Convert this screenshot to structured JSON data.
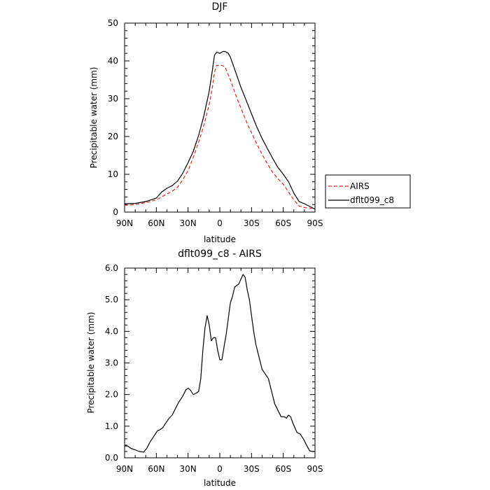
{
  "chart_data": [
    {
      "type": "line",
      "title": "DJF",
      "xlabel": "latitude",
      "ylabel": "Precipitable water (mm)",
      "xlim": [
        90,
        -90
      ],
      "ylim": [
        0,
        50
      ],
      "x_ticks": [
        {
          "value": 90,
          "label": "90N"
        },
        {
          "value": 60,
          "label": "60N"
        },
        {
          "value": 30,
          "label": "30N"
        },
        {
          "value": 0,
          "label": "0"
        },
        {
          "value": -30,
          "label": "30S"
        },
        {
          "value": -60,
          "label": "60S"
        },
        {
          "value": -90,
          "label": "90S"
        }
      ],
      "y_ticks": [
        {
          "value": 0,
          "label": "0"
        },
        {
          "value": 10,
          "label": "10"
        },
        {
          "value": 20,
          "label": "20"
        },
        {
          "value": 30,
          "label": "30"
        },
        {
          "value": 40,
          "label": "40"
        },
        {
          "value": 50,
          "label": "50"
        }
      ],
      "legend_position": "right",
      "grid": false,
      "series": [
        {
          "name": "AIRS",
          "color": "#e8281e",
          "dash": "dashed",
          "x": [
            90,
            80,
            70,
            60,
            50,
            45,
            40,
            35,
            30,
            25,
            20,
            15,
            10,
            7,
            5,
            3,
            0,
            -2,
            -5,
            -10,
            -15,
            -20,
            -25,
            -30,
            -35,
            -40,
            -45,
            -50,
            -55,
            -60,
            -65,
            -70,
            -75,
            -80,
            -85,
            -90
          ],
          "y": [
            1.8,
            2.0,
            2.5,
            3.2,
            4.8,
            5.5,
            6.6,
            8.5,
            11,
            14.5,
            18.5,
            23,
            28.5,
            33,
            37,
            38.8,
            38.9,
            38.8,
            38.4,
            35,
            31,
            27.5,
            24,
            21,
            18,
            15.3,
            12.8,
            10.5,
            8.8,
            7.4,
            5.3,
            3.2,
            1.6,
            1.2,
            1.1,
            0.8
          ]
        },
        {
          "name": "dflt099_c8",
          "color": "#000000",
          "dash": "solid",
          "x": [
            90,
            80,
            70,
            60,
            55,
            50,
            45,
            40,
            35,
            30,
            25,
            20,
            15,
            10,
            7,
            5,
            3,
            0,
            -3,
            -5,
            -8,
            -10,
            -15,
            -20,
            -25,
            -30,
            -35,
            -40,
            -45,
            -50,
            -55,
            -60,
            -65,
            -70,
            -75,
            -80,
            -85,
            -90
          ],
          "y": [
            2.2,
            2.3,
            2.8,
            3.7,
            5.3,
            6.3,
            7.0,
            8.2,
            10.3,
            13.1,
            16.1,
            20.3,
            25.5,
            32,
            37.5,
            41.5,
            42.3,
            42.0,
            42.5,
            42.5,
            42.0,
            41.0,
            37,
            33,
            29.5,
            26,
            22.5,
            19.5,
            16.8,
            14.2,
            11.8,
            10.0,
            8.0,
            5.0,
            2.8,
            2.2,
            1.5,
            0.8
          ]
        }
      ]
    },
    {
      "type": "line",
      "title": "dflt099_c8 - AIRS",
      "xlabel": "latitude",
      "ylabel": "Precipitable water (mm)",
      "xlim": [
        90,
        -90
      ],
      "ylim": [
        0,
        6
      ],
      "x_ticks": [
        {
          "value": 90,
          "label": "90N"
        },
        {
          "value": 60,
          "label": "60N"
        },
        {
          "value": 30,
          "label": "30N"
        },
        {
          "value": 0,
          "label": "0"
        },
        {
          "value": -30,
          "label": "30S"
        },
        {
          "value": -60,
          "label": "60S"
        },
        {
          "value": -90,
          "label": "90S"
        }
      ],
      "y_ticks": [
        {
          "value": 0,
          "label": "0.0"
        },
        {
          "value": 1,
          "label": "1.0"
        },
        {
          "value": 2,
          "label": "2.0"
        },
        {
          "value": 3,
          "label": "3.0"
        },
        {
          "value": 4,
          "label": "4.0"
        },
        {
          "value": 5,
          "label": "5.0"
        },
        {
          "value": 6,
          "label": "6.0"
        }
      ],
      "grid": false,
      "series": [
        {
          "color": "#000000",
          "dash": "solid",
          "x": [
            90,
            87,
            84,
            80,
            76,
            72,
            69,
            66,
            62,
            59,
            57,
            54,
            51,
            48,
            45,
            42,
            39,
            35,
            32,
            30,
            28,
            25,
            22,
            20,
            18,
            16,
            14,
            12,
            10,
            8,
            6,
            4,
            2,
            0,
            -2,
            -4,
            -6,
            -8,
            -10,
            -12,
            -14,
            -16,
            -18,
            -20,
            -22,
            -24,
            -26,
            -28,
            -30,
            -32,
            -34,
            -37,
            -40,
            -43,
            -46,
            -49,
            -52,
            -55,
            -58,
            -61,
            -63,
            -65,
            -67,
            -69,
            -71,
            -73,
            -76,
            -79,
            -82,
            -85,
            -88,
            -90
          ],
          "y": [
            0.38,
            0.37,
            0.3,
            0.25,
            0.2,
            0.18,
            0.3,
            0.5,
            0.7,
            0.85,
            0.88,
            0.95,
            1.1,
            1.25,
            1.35,
            1.55,
            1.75,
            1.95,
            2.15,
            2.2,
            2.15,
            2.0,
            2.05,
            2.1,
            2.5,
            3.4,
            4.1,
            4.5,
            4.2,
            3.7,
            3.8,
            3.8,
            3.4,
            3.1,
            3.1,
            3.5,
            3.9,
            4.4,
            4.9,
            5.1,
            5.4,
            5.45,
            5.5,
            5.65,
            5.8,
            5.7,
            5.3,
            5.0,
            4.5,
            4.0,
            3.6,
            3.2,
            2.8,
            2.65,
            2.5,
            2.1,
            1.7,
            1.5,
            1.3,
            1.3,
            1.25,
            1.35,
            1.3,
            1.1,
            0.95,
            0.8,
            0.75,
            0.6,
            0.4,
            0.22,
            0.2,
            0.2
          ]
        }
      ]
    }
  ]
}
